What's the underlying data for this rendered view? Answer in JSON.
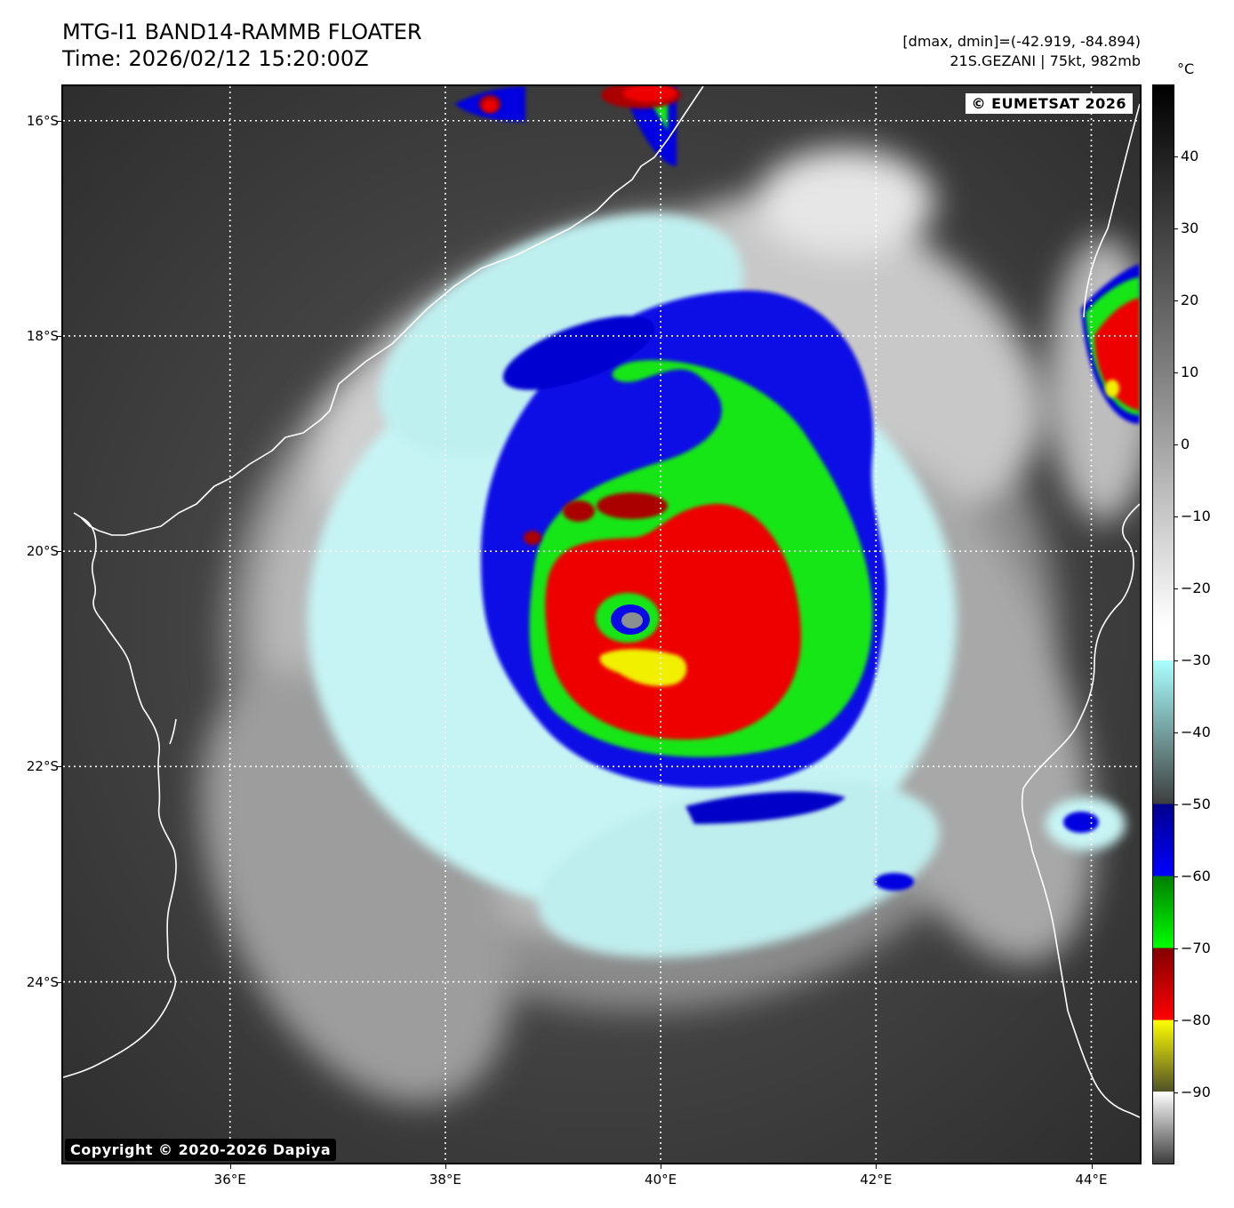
{
  "title": {
    "line1": "MTG-I1 BAND14-RAMMB FLOATER",
    "line2": "Time: 2026/02/12 15:20:00Z"
  },
  "info": {
    "range": "[dmax, dmin]=(-42.919, -84.894)",
    "storm": "21S.GEZANI | 75kt, 982mb"
  },
  "map": {
    "watermark_top": "© EUMETSAT 2026",
    "watermark_bottom": "Copyright © 2020-2026 Dapiya",
    "lon_range": [
      34.45,
      44.45
    ],
    "lat_range": [
      -15.68,
      -25.68
    ],
    "lat_ticks": [
      {
        "value": -16,
        "label": "16°S"
      },
      {
        "value": -18,
        "label": "18°S"
      },
      {
        "value": -20,
        "label": "20°S"
      },
      {
        "value": -22,
        "label": "22°S"
      },
      {
        "value": -24,
        "label": "24°S"
      }
    ],
    "lon_ticks": [
      {
        "value": 36,
        "label": "36°E"
      },
      {
        "value": 38,
        "label": "38°E"
      },
      {
        "value": 40,
        "label": "40°E"
      },
      {
        "value": 42,
        "label": "42°E"
      },
      {
        "value": 44,
        "label": "44°E"
      }
    ],
    "gridlines": "dotted-white",
    "coastline_color": "#ffffff"
  },
  "colorbar": {
    "unit": "°C",
    "range": [
      -100,
      50
    ],
    "ticks": [
      {
        "value": 40,
        "label": "40"
      },
      {
        "value": 30,
        "label": "30"
      },
      {
        "value": 20,
        "label": "20"
      },
      {
        "value": 10,
        "label": "10"
      },
      {
        "value": 0,
        "label": "0"
      },
      {
        "value": -10,
        "label": "−10"
      },
      {
        "value": -20,
        "label": "−20"
      },
      {
        "value": -30,
        "label": "−30"
      },
      {
        "value": -40,
        "label": "−40"
      },
      {
        "value": -50,
        "label": "−50"
      },
      {
        "value": -60,
        "label": "−60"
      },
      {
        "value": -70,
        "label": "−70"
      },
      {
        "value": -80,
        "label": "−80"
      },
      {
        "value": -90,
        "label": "−90"
      }
    ],
    "colors": {
      "warm_top": "#000000",
      "gray_mid": "#808080",
      "white": "#ffffff",
      "cyan": "#aaffff",
      "dark_gray": "#3d3d3d",
      "blue_dark": "#00008c",
      "blue": "#0000ff",
      "green_dark": "#007d00",
      "green": "#00ff00",
      "red_dark": "#820000",
      "red": "#ff0000",
      "yellow": "#ffff00",
      "olive": "#505028"
    }
  }
}
